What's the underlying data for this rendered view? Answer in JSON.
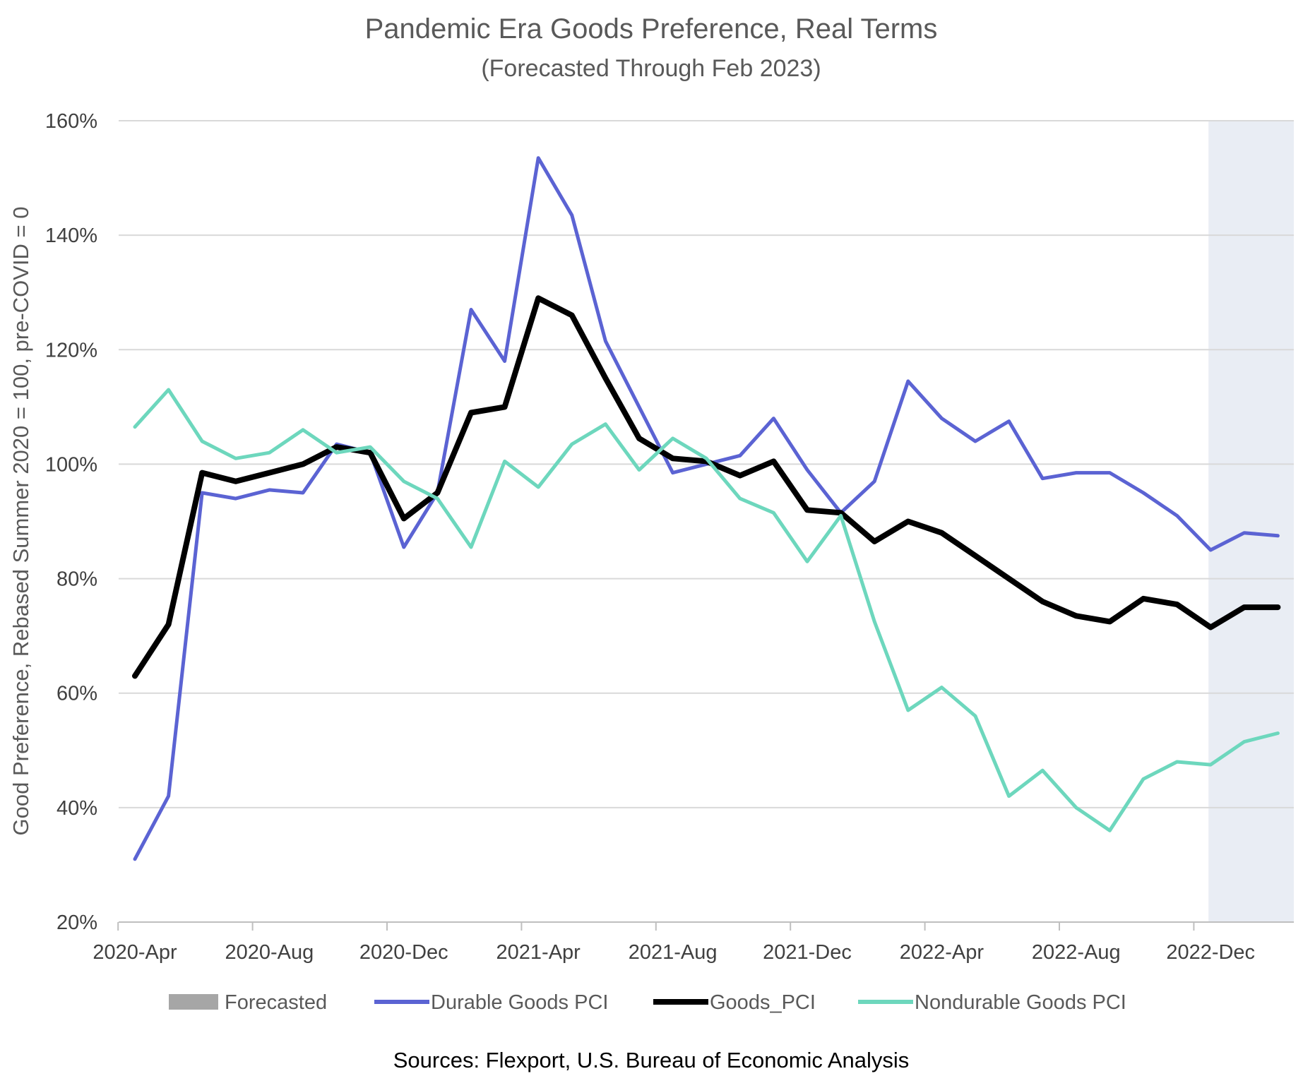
{
  "chart_data": {
    "type": "line",
    "title": "Pandemic Era Goods Preference, Real Terms",
    "subtitle": "(Forecasted Through Feb 2023)",
    "ylabel": "Good Preference, Rebased Summer 2020 = 100, pre-COVID = 0",
    "xlabel": "",
    "ylim": [
      20,
      160
    ],
    "y_ticks": [
      20,
      40,
      60,
      80,
      100,
      120,
      140,
      160
    ],
    "y_tick_labels": [
      "20%",
      "40%",
      "60%",
      "80%",
      "100%",
      "120%",
      "140%",
      "160%"
    ],
    "x_tick_labels": [
      "2020-Apr",
      "2020-Aug",
      "2020-Dec",
      "2021-Apr",
      "2021-Aug",
      "2021-Dec",
      "2022-Apr",
      "2022-Aug",
      "2022-Dec"
    ],
    "categories": [
      "2020-Apr",
      "2020-May",
      "2020-Jun",
      "2020-Jul",
      "2020-Aug",
      "2020-Sep",
      "2020-Oct",
      "2020-Nov",
      "2020-Dec",
      "2021-Jan",
      "2021-Feb",
      "2021-Mar",
      "2021-Apr",
      "2021-May",
      "2021-Jun",
      "2021-Jul",
      "2021-Aug",
      "2021-Sep",
      "2021-Oct",
      "2021-Nov",
      "2021-Dec",
      "2022-Jan",
      "2022-Feb",
      "2022-Mar",
      "2022-Apr",
      "2022-May",
      "2022-Jun",
      "2022-Jul",
      "2022-Aug",
      "2022-Sep",
      "2022-Oct",
      "2022-Nov",
      "2022-Dec",
      "2023-Jan",
      "2023-Feb"
    ],
    "forecast_start": "2022-Dec",
    "grid": true,
    "series": [
      {
        "name": "Durable Goods PCI",
        "color": "#5b63d3",
        "values": [
          31,
          42,
          95,
          94,
          95.5,
          95,
          103.5,
          102,
          85.5,
          95,
          127,
          118,
          153.5,
          143.5,
          121.5,
          110,
          98.5,
          100,
          101.5,
          108,
          99,
          91.5,
          97,
          114.5,
          108,
          104,
          107.5,
          97.5,
          98.5,
          98.5,
          95,
          91,
          85,
          88,
          87.5
        ]
      },
      {
        "name": "Goods_PCI",
        "color": "#000000",
        "values": [
          63,
          72,
          98.5,
          97,
          98.5,
          100,
          103,
          102,
          90.5,
          95,
          109,
          110,
          129,
          126,
          115,
          104.5,
          101,
          100.5,
          98,
          100.5,
          92,
          91.5,
          86.5,
          90,
          88,
          84,
          80,
          76,
          73.5,
          72.5,
          76.5,
          75.5,
          71.5,
          75,
          75
        ]
      },
      {
        "name": "Nondurable Goods PCI",
        "color": "#6dd7bd",
        "values": [
          106.5,
          113,
          104,
          101,
          102,
          106,
          102,
          103,
          97,
          94,
          85.5,
          100.5,
          96,
          103.5,
          107,
          99,
          104.5,
          101,
          94,
          91.5,
          83,
          91,
          72.5,
          57,
          61,
          56,
          42,
          46.5,
          40,
          36,
          45,
          48,
          47.5,
          51.5,
          53
        ]
      }
    ],
    "legend": [
      "Forecasted",
      "Durable Goods PCI",
      "Goods_PCI",
      "Nondurable Goods PCI"
    ],
    "legend_position": "bottom",
    "forecast_color": "#a6a6a6",
    "forecast_band_color": "#e9edf4",
    "source_note": "Sources: Flexport, U.S. Bureau of Economic Analysis"
  }
}
